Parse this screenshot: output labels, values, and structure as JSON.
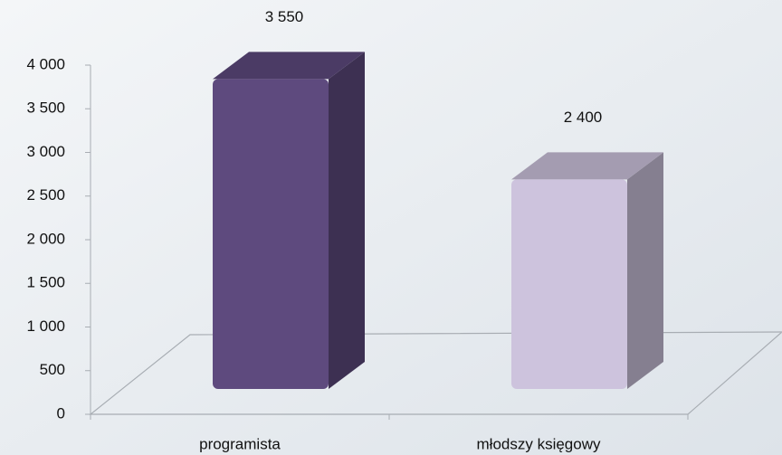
{
  "chart_data": {
    "type": "bar3d",
    "categories": [
      "programista",
      "młodszy księgowy"
    ],
    "values": [
      3550,
      2400
    ],
    "value_labels": [
      "3 550",
      "2 400"
    ],
    "colors": [
      "#5e4a7e",
      "#cdc3dd"
    ],
    "ylim": [
      0,
      4000
    ],
    "yticks": [
      0,
      500,
      {
        "value": 1000,
        "label": "1 000"
      },
      {
        "value": 1500,
        "label": "1 500"
      },
      {
        "value": 2000,
        "label": "2 000"
      },
      {
        "value": 2500,
        "label": "2 500"
      },
      {
        "value": 3000,
        "label": "3 000"
      },
      {
        "value": 3500,
        "label": "3 500"
      },
      {
        "value": 4000,
        "label": "4 000"
      }
    ]
  }
}
